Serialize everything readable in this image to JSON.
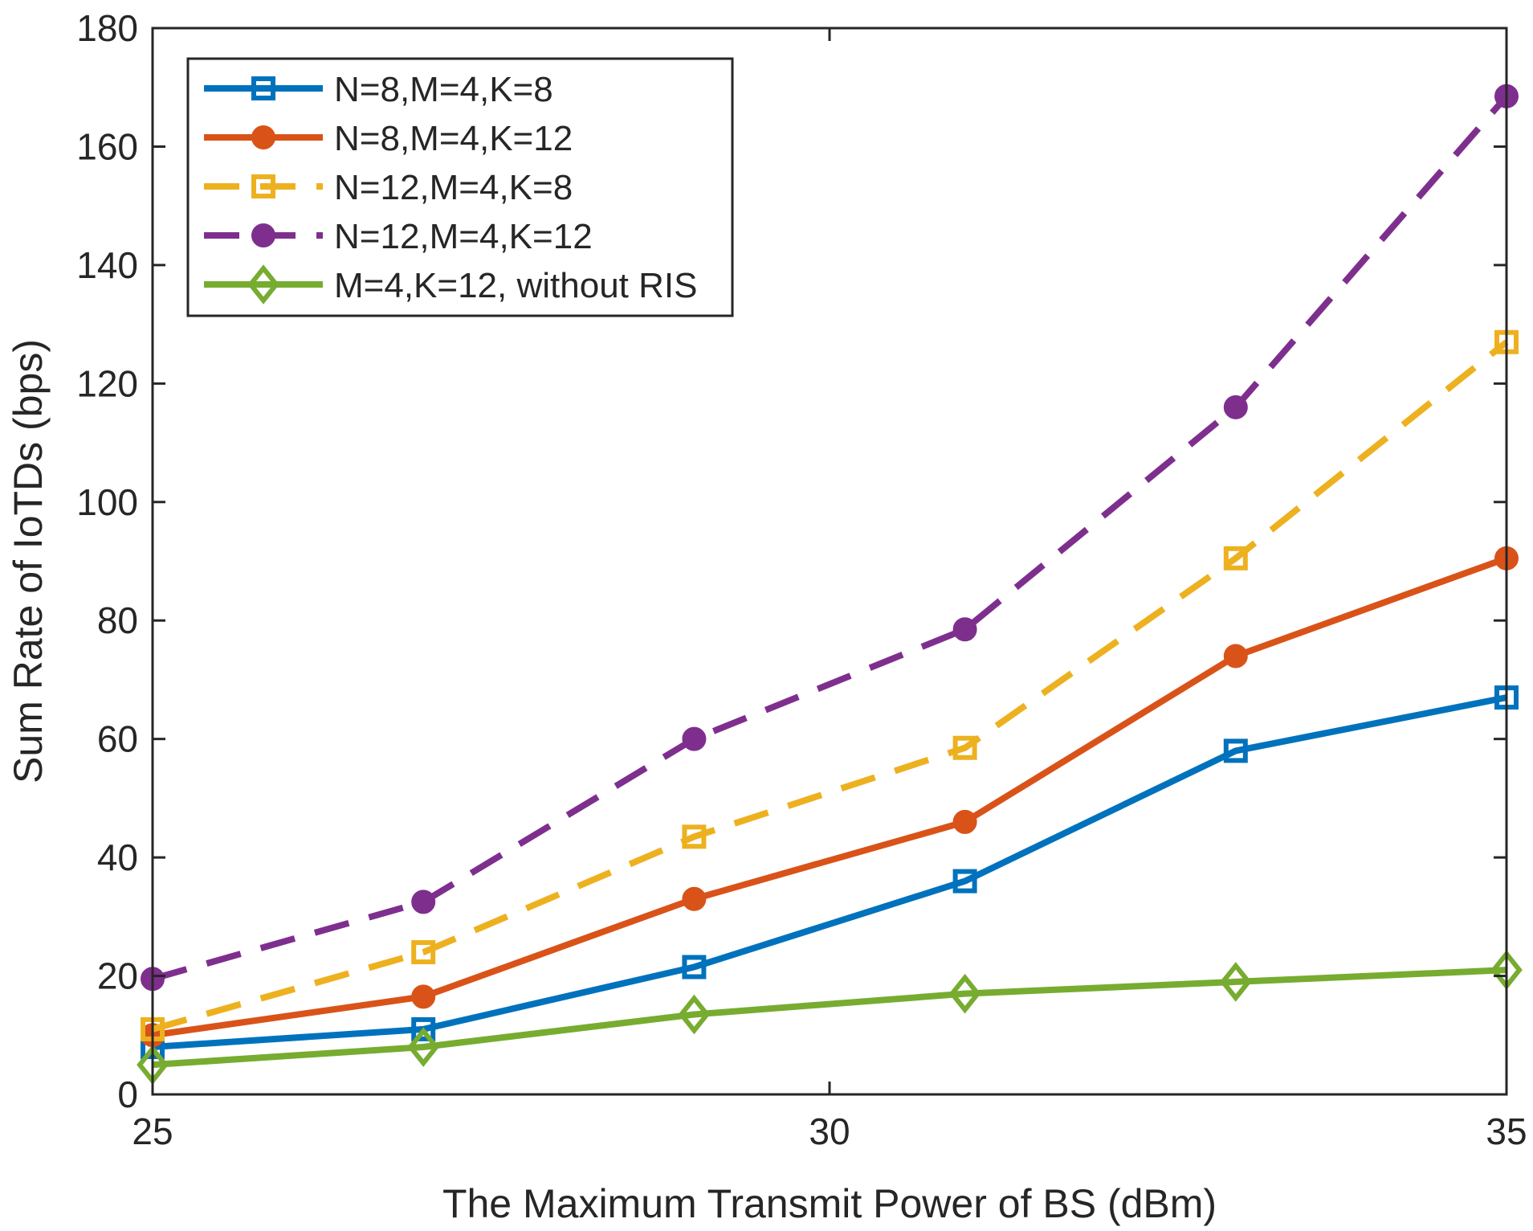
{
  "chart_data": {
    "type": "line",
    "title": "",
    "xlabel": "The Maximum Transmit Power of BS (dBm)",
    "ylabel": "Sum Rate of IoTDs (bps)",
    "xlim": [
      25,
      35
    ],
    "ylim": [
      0,
      180
    ],
    "xticks": [
      25,
      30,
      35
    ],
    "yticks": [
      0,
      20,
      40,
      60,
      80,
      100,
      120,
      140,
      160,
      180
    ],
    "x": [
      25,
      27,
      29,
      31,
      33,
      35
    ],
    "grid": false,
    "legend_position": "top-left",
    "series": [
      {
        "name": "N=8,M=4,K=8",
        "values": [
          8,
          11,
          21.5,
          36,
          58,
          67
        ],
        "color": "#0072BD",
        "dashed": false,
        "marker": "square"
      },
      {
        "name": "N=8,M=4,K=12",
        "values": [
          10,
          16.5,
          33,
          46,
          74,
          90.5
        ],
        "color": "#D95319",
        "dashed": false,
        "marker": "circle"
      },
      {
        "name": "N=12,M=4,K=8",
        "values": [
          11,
          24,
          43.5,
          58.5,
          90.5,
          127
        ],
        "color": "#EDB120",
        "dashed": true,
        "marker": "square"
      },
      {
        "name": "N=12,M=4,K=12",
        "values": [
          19.5,
          32.5,
          60,
          78.5,
          116,
          168.5
        ],
        "color": "#7E2F8E",
        "dashed": true,
        "marker": "circle"
      },
      {
        "name": "M=4,K=12, without RIS",
        "values": [
          5,
          8,
          13.5,
          17,
          19,
          21
        ],
        "color": "#77AC30",
        "dashed": false,
        "marker": "diamond"
      }
    ]
  }
}
